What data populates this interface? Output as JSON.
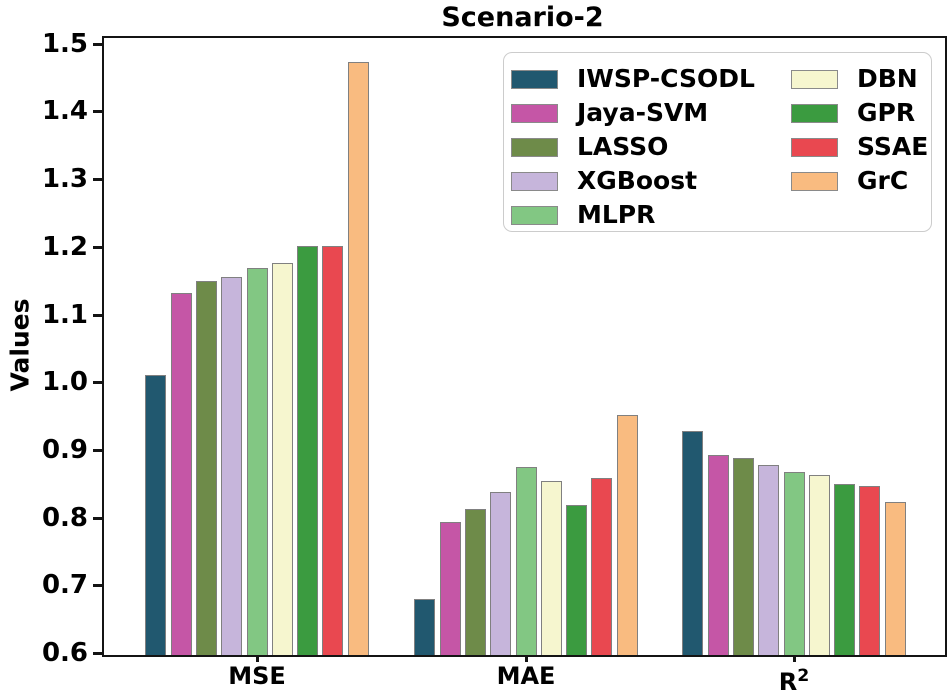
{
  "chart_data": {
    "type": "bar",
    "title": "Scenario-2",
    "ylabel": "Values",
    "categories": [
      "MSE",
      "MAE",
      "R²"
    ],
    "ylim": [
      0.6,
      1.5114
    ],
    "yticks": [
      0.6,
      0.7,
      0.8,
      0.9,
      1.0,
      1.1,
      1.2,
      1.3,
      1.4,
      1.5
    ],
    "grid": false,
    "legend_position": "upper right inside plot, 2 columns",
    "bar_edge_color": "#808080",
    "series": [
      {
        "name": "IWSP-CSODL",
        "color": "#21586f",
        "values": [
          1.013,
          0.682,
          0.931
        ]
      },
      {
        "name": "Jaya-SVM",
        "color": "#c556a6",
        "values": [
          1.134,
          0.796,
          0.896
        ]
      },
      {
        "name": "LASSO",
        "color": "#6e8b49",
        "values": [
          1.153,
          0.815,
          0.891
        ]
      },
      {
        "name": "XGBoost",
        "color": "#c6b5db",
        "values": [
          1.158,
          0.841,
          0.88
        ]
      },
      {
        "name": "MLPR",
        "color": "#82c783",
        "values": [
          1.171,
          0.878,
          0.871
        ]
      },
      {
        "name": "DBN",
        "color": "#f6f6cf",
        "values": [
          1.179,
          0.857,
          0.866
        ]
      },
      {
        "name": "GPR",
        "color": "#3b9b40",
        "values": [
          1.204,
          0.822,
          0.853
        ]
      },
      {
        "name": "SSAE",
        "color": "#e94850",
        "values": [
          1.204,
          0.862,
          0.85
        ]
      },
      {
        "name": "GrC",
        "color": "#f9bb80",
        "values": [
          1.476,
          0.954,
          0.826
        ]
      }
    ]
  }
}
